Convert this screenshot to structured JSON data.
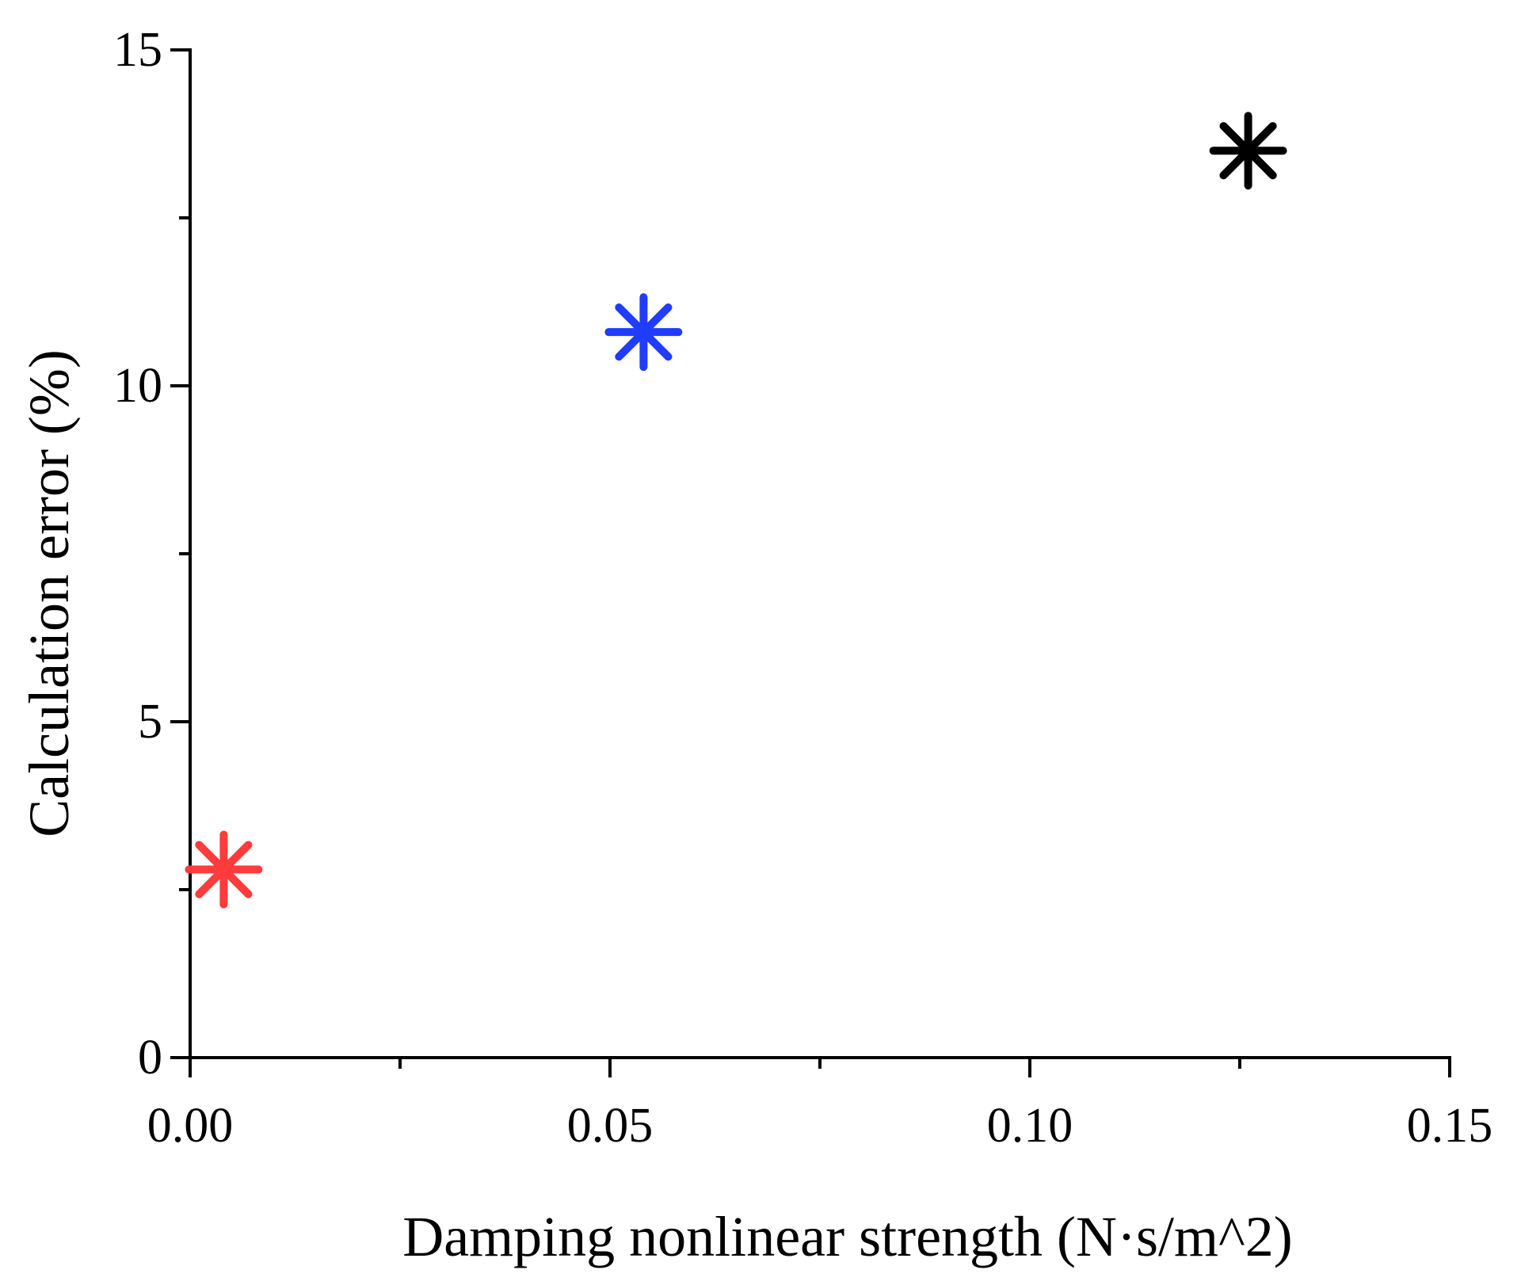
{
  "chart_data": {
    "type": "scatter",
    "title": "",
    "xlabel": "Damping nonlinear strength (N·s/m^2)",
    "ylabel": "Calculation error (%)",
    "xlim": [
      0,
      0.15
    ],
    "ylim": [
      0,
      15
    ],
    "xticks": [
      0.0,
      0.05,
      0.1,
      0.15
    ],
    "xtick_labels": [
      "0.00",
      "0.05",
      "0.10",
      "0.15"
    ],
    "xminor_ticks": [
      0.025,
      0.075,
      0.125
    ],
    "yticks": [
      0,
      5,
      10,
      15
    ],
    "ytick_labels": [
      "0",
      "5",
      "10",
      "15"
    ],
    "yminor_ticks": [
      2.5,
      7.5,
      12.5
    ],
    "grid": false,
    "legend": "none",
    "marker": "asterisk",
    "points": [
      {
        "x": 0.004,
        "y": 2.8,
        "color": "#ff3b3b"
      },
      {
        "x": 0.054,
        "y": 10.8,
        "color": "#1f3cff"
      },
      {
        "x": 0.126,
        "y": 13.5,
        "color": "#000000"
      }
    ]
  }
}
